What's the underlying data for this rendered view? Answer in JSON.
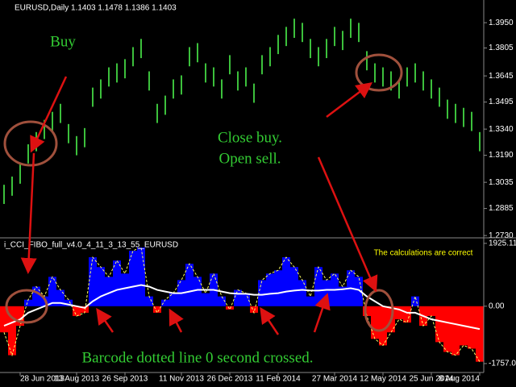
{
  "chart_data": [
    {
      "type": "range_bar",
      "title": "EURUSD,Daily  1.1403 1.1478 1.1386 1.1403",
      "color": "#3cc03c",
      "ylim": [
        1.2726,
        1.408
      ],
      "yticks": [
        {
          "value": 1.395,
          "label": "1.3950"
        },
        1.3805,
        1.3645,
        1.3495,
        {
          "value": 1.334,
          "label": "1.3340"
        },
        {
          "value": 1.319,
          "label": "1.3190"
        },
        1.3035,
        1.2885,
        {
          "value": 1.273,
          "label": "1.2730"
        }
      ],
      "high": [
        1.3021,
        1.3068,
        1.3137,
        1.3253,
        1.3323,
        1.3393,
        1.3439,
        1.3485,
        1.3369,
        1.33,
        1.3346,
        1.3578,
        1.3625,
        1.3694,
        1.3717,
        1.3741,
        1.381,
        1.3857,
        1.3671,
        1.3485,
        1.3532,
        1.3625,
        1.3648,
        1.381,
        1.3833,
        1.3717,
        1.3694,
        1.3625,
        1.3764,
        1.3671,
        1.3694,
        1.3601,
        1.3764,
        1.381,
        1.388,
        1.3926,
        1.3973,
        1.3949,
        1.3857,
        1.381,
        1.3857,
        1.3926,
        1.3903,
        1.3973,
        1.3949,
        1.3787,
        1.3717,
        1.3694,
        1.3671,
        1.3625,
        1.3694,
        1.3717,
        1.3671,
        1.3625,
        1.3578,
        1.3509,
        1.3485,
        1.3462,
        1.3439,
        1.3323
      ],
      "low": [
        1.2911,
        1.2958,
        1.3027,
        1.3143,
        1.3213,
        1.3283,
        1.3329,
        1.3375,
        1.3259,
        1.319,
        1.3236,
        1.3468,
        1.3515,
        1.3584,
        1.3607,
        1.3631,
        1.37,
        1.3747,
        1.3561,
        1.3375,
        1.3422,
        1.3515,
        1.3538,
        1.37,
        1.3723,
        1.3607,
        1.3584,
        1.3515,
        1.3654,
        1.3561,
        1.3584,
        1.3491,
        1.3654,
        1.37,
        1.377,
        1.3816,
        1.3863,
        1.3839,
        1.3747,
        1.37,
        1.3747,
        1.3816,
        1.3793,
        1.3863,
        1.3839,
        1.3677,
        1.3607,
        1.3584,
        1.3561,
        1.3515,
        1.3584,
        1.3607,
        1.3561,
        1.3515,
        1.3468,
        1.3399,
        1.3375,
        1.3352,
        1.3329,
        1.3213
      ],
      "annotations": [
        "Buy",
        "Close buy.",
        "Open sell."
      ]
    },
    {
      "type": "oscillator",
      "title": "i_CCI_FIBO_full_v4.0_4_11_3_13_55_EURUSD",
      "ylim": [
        -2030,
        2045
      ],
      "yticks": [
        1925.11,
        {
          "value": 0,
          "label": "0.00"
        },
        -1757.05
      ],
      "categories": [
        null,
        null,
        "28 Jun 2013",
        null,
        null,
        null,
        null,
        null,
        null,
        "13 Aug 2013",
        null,
        null,
        null,
        null,
        null,
        "26 Sep 2013",
        null,
        null,
        null,
        null,
        null,
        null,
        "11 Nov 2013",
        null,
        null,
        null,
        null,
        null,
        "26 Dec 2013",
        null,
        null,
        null,
        null,
        null,
        "11 Feb 2014",
        null,
        null,
        null,
        null,
        null,
        null,
        "27 Mar 2014",
        null,
        null,
        null,
        null,
        null,
        "12 May 2014",
        null,
        null,
        null,
        null,
        null,
        "25 Jun 2014",
        null,
        null,
        null,
        null,
        null,
        "8 Aug 2014"
      ],
      "positive_color": "#0000ff",
      "negative_color": "#ff0000",
      "line_color": "#ffffff",
      "values": [
        -800,
        -1500,
        -600,
        200,
        600,
        300,
        900,
        500,
        200,
        -300,
        -200,
        1500,
        1200,
        900,
        1400,
        1000,
        1700,
        1800,
        300,
        -200,
        200,
        400,
        800,
        1300,
        900,
        400,
        1000,
        300,
        -100,
        500,
        400,
        -200,
        800,
        1000,
        1100,
        1500,
        1200,
        800,
        300,
        1200,
        800,
        1000,
        600,
        1100,
        900,
        -300,
        -1000,
        -1200,
        -800,
        -400,
        -500,
        300,
        -600,
        -300,
        -1100,
        -1400,
        -1500,
        -1200,
        -1300,
        -1700
      ],
      "line_values": [
        -600,
        -500,
        -400,
        -200,
        -100,
        0,
        100,
        100,
        50,
        0,
        -50,
        150,
        300,
        400,
        500,
        550,
        600,
        650,
        600,
        500,
        450,
        400,
        400,
        450,
        500,
        500,
        500,
        450,
        400,
        380,
        380,
        350,
        350,
        380,
        400,
        450,
        480,
        500,
        480,
        480,
        500,
        500,
        520,
        550,
        500,
        300,
        150,
        0,
        -50,
        -100,
        -200,
        -200,
        -300,
        -400,
        -450,
        -500,
        -550,
        -600,
        -650,
        -700
      ],
      "annotations": [
        "The calculations are correct",
        "Barcode dotted line 0 second crossed."
      ]
    }
  ]
}
